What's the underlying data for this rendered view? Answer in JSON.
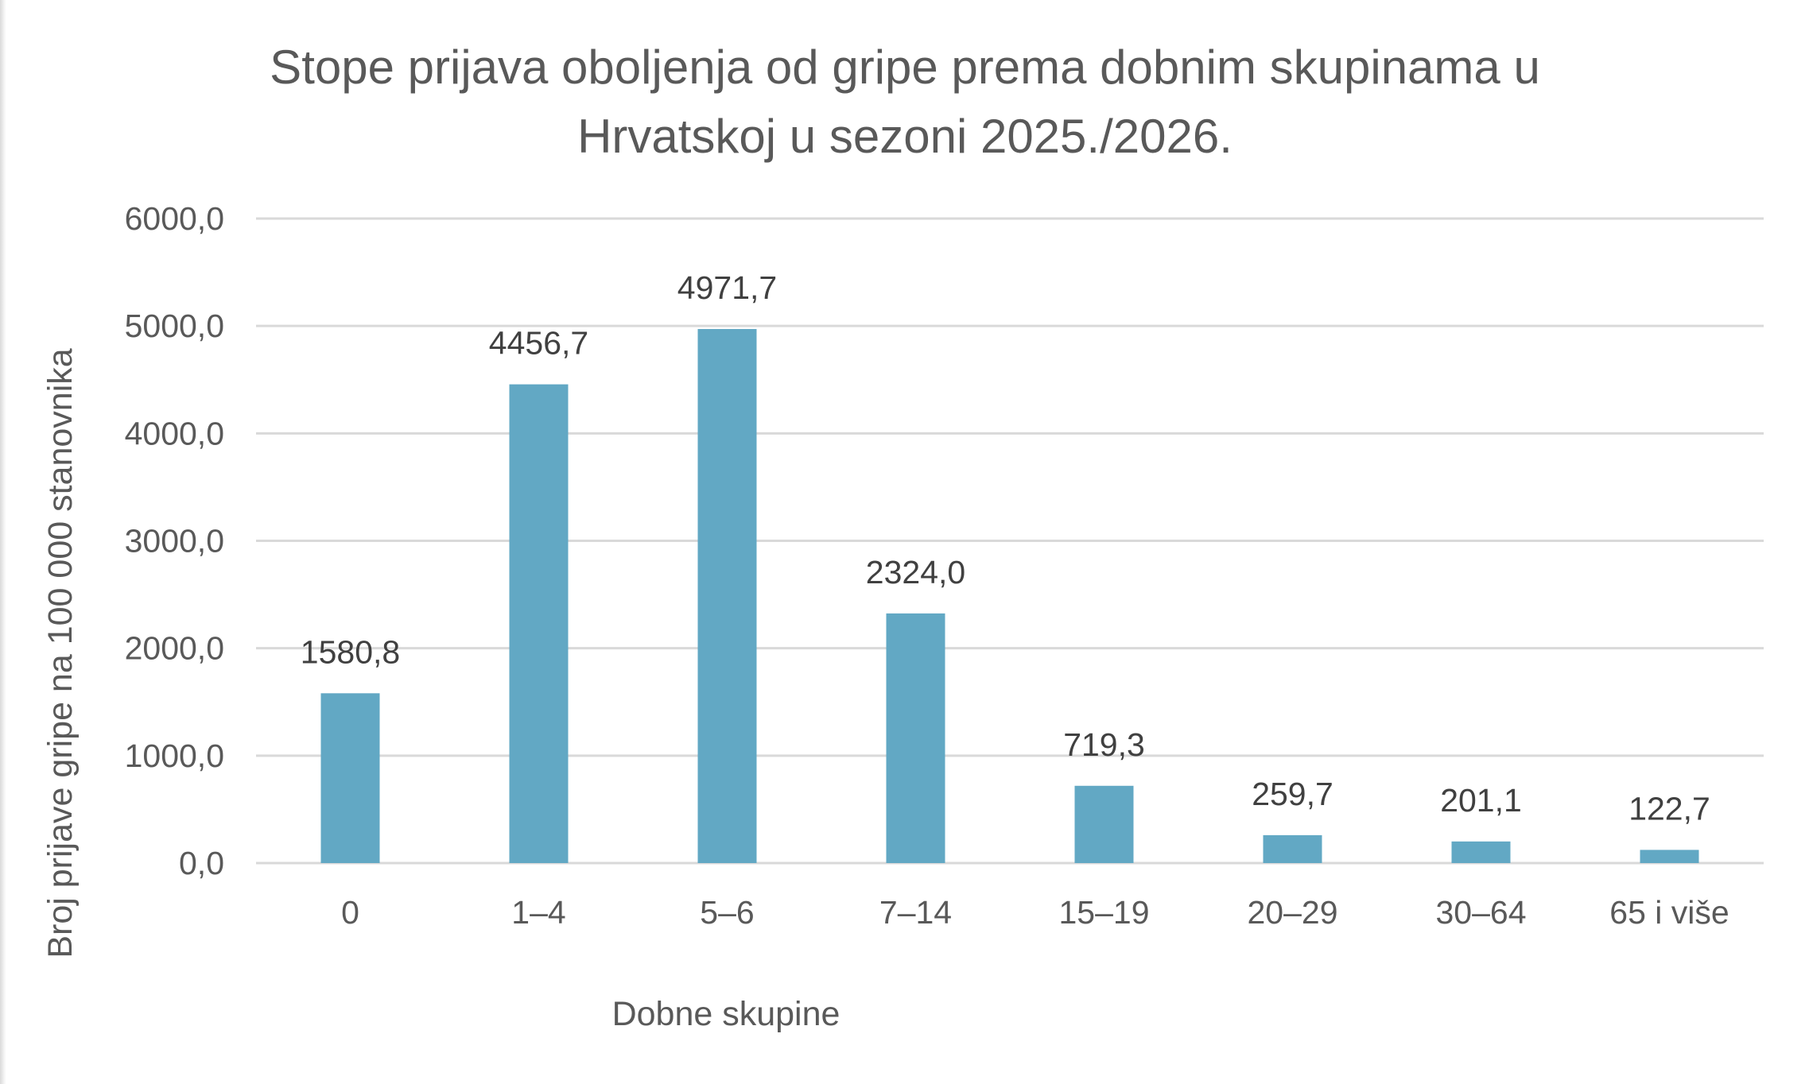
{
  "chart_data": {
    "type": "bar",
    "title": "Stope prijava oboljenja od gripe prema dobnim skupinama u Hrvatskoj u sezoni 2025./2026.",
    "title_lines": [
      "Stope prijava oboljenja od gripe prema dobnim skupinama u",
      "Hrvatskoj u sezoni  2025./2026."
    ],
    "xlabel": "Dobne skupine",
    "ylabel": "Broj prijave gripe na 100 000 stanovnika",
    "categories": [
      "0",
      "1–4",
      "5–6",
      "7–14",
      "15–19",
      "20–29",
      "30–64",
      "65 i više"
    ],
    "values": [
      1580.8,
      4456.7,
      4971.7,
      2324.0,
      719.3,
      259.7,
      201.1,
      122.7
    ],
    "value_labels": [
      "1580,8",
      "4456,7",
      "4971,7",
      "2324,0",
      "719,3",
      "259,7",
      "201,1",
      "122,7"
    ],
    "ylim": [
      0,
      6000
    ],
    "yticks": [
      0,
      1000,
      2000,
      3000,
      4000,
      5000,
      6000
    ],
    "ytick_labels": [
      "0,0",
      "1000,0",
      "2000,0",
      "3000,0",
      "4000,0",
      "5000,0",
      "6000,0"
    ],
    "grid": true,
    "legend": "none",
    "colors": {
      "bar": "#62A8C4",
      "grid": "#d9d9d9",
      "text": "#595959",
      "value_text": "#404040"
    }
  }
}
